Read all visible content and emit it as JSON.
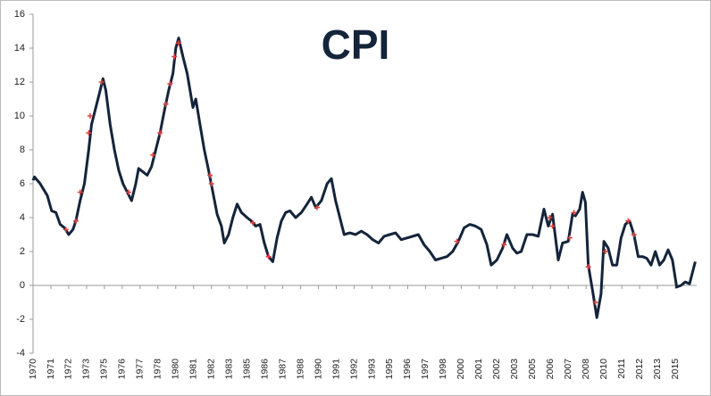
{
  "chart_data": {
    "type": "line",
    "title": "CPI",
    "xlim": [
      1970,
      2016.5
    ],
    "ylim": [
      -4,
      16
    ],
    "yticks": [
      -4,
      -2,
      0,
      2,
      4,
      6,
      8,
      10,
      12,
      14,
      16
    ],
    "xticks": [
      1970,
      {
        "value": 1971.25,
        "label": "1971"
      },
      {
        "value": 1972.5,
        "label": "1972"
      },
      {
        "value": 1973.75,
        "label": "1973"
      },
      1975,
      {
        "value": 1976.25,
        "label": "1976"
      },
      {
        "value": 1977.5,
        "label": "1977"
      },
      {
        "value": 1978.75,
        "label": "1978"
      },
      1980,
      {
        "value": 1981.25,
        "label": "1981"
      },
      {
        "value": 1982.5,
        "label": "1982"
      },
      {
        "value": 1983.75,
        "label": "1983"
      },
      1985,
      {
        "value": 1986.25,
        "label": "1986"
      },
      {
        "value": 1987.5,
        "label": "1987"
      },
      {
        "value": 1988.75,
        "label": "1988"
      },
      1990,
      {
        "value": 1991.25,
        "label": "1991"
      },
      {
        "value": 1992.5,
        "label": "1992"
      },
      {
        "value": 1993.75,
        "label": "1993"
      },
      1995,
      {
        "value": 1996.25,
        "label": "1996"
      },
      {
        "value": 1997.5,
        "label": "1997"
      },
      {
        "value": 1998.75,
        "label": "1998"
      },
      2000,
      {
        "value": 2001.25,
        "label": "2001"
      },
      {
        "value": 2002.5,
        "label": "2002"
      },
      {
        "value": 2003.75,
        "label": "2003"
      },
      2005,
      {
        "value": 2006.25,
        "label": "2006"
      },
      {
        "value": 2007.5,
        "label": "2007"
      },
      {
        "value": 2008.75,
        "label": "2008"
      },
      2010,
      {
        "value": 2011.25,
        "label": "2011"
      },
      {
        "value": 2012.5,
        "label": "2012"
      },
      {
        "value": 2013.75,
        "label": "2013"
      },
      2015
    ],
    "series": [
      {
        "color": "#14243a",
        "x": [
          1970.0,
          1970.1,
          1970.5,
          1971.0,
          1971.3,
          1971.6,
          1971.9,
          1972.2,
          1972.5,
          1972.8,
          1973.0,
          1973.3,
          1973.6,
          1973.9,
          1974.1,
          1974.4,
          1974.7,
          1974.9,
          1975.1,
          1975.4,
          1975.7,
          1976.0,
          1976.3,
          1976.6,
          1976.9,
          1977.2,
          1977.4,
          1977.7,
          1978.0,
          1978.3,
          1978.6,
          1978.9,
          1979.2,
          1979.5,
          1979.8,
          1980.0,
          1980.2,
          1980.5,
          1980.8,
          1981.0,
          1981.2,
          1981.4,
          1981.7,
          1982.0,
          1982.3,
          1982.6,
          1982.9,
          1983.2,
          1983.4,
          1983.7,
          1984.0,
          1984.3,
          1984.6,
          1985.0,
          1985.3,
          1985.6,
          1985.9,
          1986.2,
          1986.5,
          1986.8,
          1987.1,
          1987.4,
          1987.7,
          1988.0,
          1988.4,
          1988.8,
          1989.2,
          1989.5,
          1989.8,
          1990.2,
          1990.6,
          1990.9,
          1991.2,
          1991.5,
          1991.8,
          1992.2,
          1992.6,
          1993.0,
          1993.4,
          1993.8,
          1994.2,
          1994.6,
          1995.0,
          1995.4,
          1995.8,
          1996.2,
          1996.6,
          1997.0,
          1997.4,
          1997.8,
          1998.2,
          1998.6,
          1999.0,
          1999.4,
          1999.8,
          2000.2,
          2000.6,
          2001.0,
          2001.4,
          2001.8,
          2002.1,
          2002.5,
          2002.9,
          2003.2,
          2003.6,
          2003.9,
          2004.2,
          2004.6,
          2005.0,
          2005.4,
          2005.8,
          2006.1,
          2006.4,
          2006.8,
          2007.1,
          2007.5,
          2007.8,
          2008.0,
          2008.3,
          2008.5,
          2008.7,
          2008.9,
          2009.2,
          2009.5,
          2009.8,
          2010.0,
          2010.3,
          2010.6,
          2010.9,
          2011.2,
          2011.5,
          2011.8,
          2012.1,
          2012.4,
          2012.7,
          2013.0,
          2013.3,
          2013.6,
          2013.9,
          2014.2,
          2014.5,
          2014.8,
          2015.1,
          2015.4,
          2015.7,
          2016.0,
          2016.4
        ],
        "values": [
          6.2,
          6.4,
          6.0,
          5.3,
          4.4,
          4.3,
          3.6,
          3.4,
          3.0,
          3.3,
          3.8,
          5.0,
          6.0,
          8.0,
          9.5,
          10.5,
          11.5,
          12.2,
          11.5,
          9.5,
          8.0,
          6.8,
          6.0,
          5.5,
          5.0,
          6.0,
          6.9,
          6.7,
          6.5,
          7.0,
          8.0,
          9.0,
          10.3,
          11.5,
          12.5,
          14.0,
          14.6,
          13.5,
          12.5,
          11.5,
          10.5,
          11.0,
          9.5,
          8.0,
          6.8,
          5.5,
          4.2,
          3.5,
          2.5,
          3.0,
          4.0,
          4.8,
          4.3,
          4.0,
          3.8,
          3.5,
          3.6,
          2.5,
          1.7,
          1.4,
          2.8,
          3.8,
          4.3,
          4.4,
          4.0,
          4.3,
          4.8,
          5.2,
          4.6,
          5.0,
          6.0,
          6.3,
          5.0,
          4.0,
          3.0,
          3.1,
          3.0,
          3.2,
          3.0,
          2.7,
          2.5,
          2.9,
          3.0,
          3.1,
          2.7,
          2.8,
          2.9,
          3.0,
          2.4,
          2.0,
          1.5,
          1.6,
          1.7,
          2.0,
          2.6,
          3.4,
          3.6,
          3.5,
          3.3,
          2.4,
          1.2,
          1.5,
          2.2,
          3.0,
          2.2,
          1.9,
          2.0,
          3.0,
          3.0,
          2.9,
          4.5,
          3.5,
          4.2,
          1.5,
          2.5,
          2.6,
          4.2,
          4.1,
          4.5,
          5.5,
          4.9,
          1.2,
          -0.3,
          -1.9,
          -0.5,
          2.6,
          2.2,
          1.2,
          1.2,
          2.8,
          3.6,
          3.8,
          3.0,
          1.7,
          1.7,
          1.6,
          1.2,
          2.0,
          1.2,
          1.5,
          2.1,
          1.5,
          -0.1,
          0.0,
          0.2,
          0.1,
          1.4
        ]
      },
      {
        "color": "#e04040",
        "markers_only": true,
        "x": [
          1972.3,
          1973.0,
          1973.3,
          1973.9,
          1974.0,
          1974.8,
          1976.7,
          1978.4,
          1978.9,
          1979.3,
          1979.6,
          1979.9,
          1980.2,
          1982.4,
          1982.5,
          1985.4,
          1986.5,
          1989.9,
          1999.7,
          2003.0,
          2006.2,
          2006.4,
          2007.6,
          2007.9,
          2008.9,
          2009.4,
          2010.1,
          2011.7,
          2012.1
        ],
        "values": [
          3.3,
          3.8,
          5.5,
          9.0,
          10.0,
          12.0,
          5.5,
          7.7,
          9.0,
          10.7,
          11.9,
          13.5,
          14.3,
          6.5,
          6.0,
          3.7,
          1.7,
          4.6,
          2.6,
          2.4,
          4.0,
          3.5,
          2.8,
          4.3,
          1.1,
          -1.0,
          2.0,
          3.8,
          3.0
        ]
      }
    ]
  }
}
